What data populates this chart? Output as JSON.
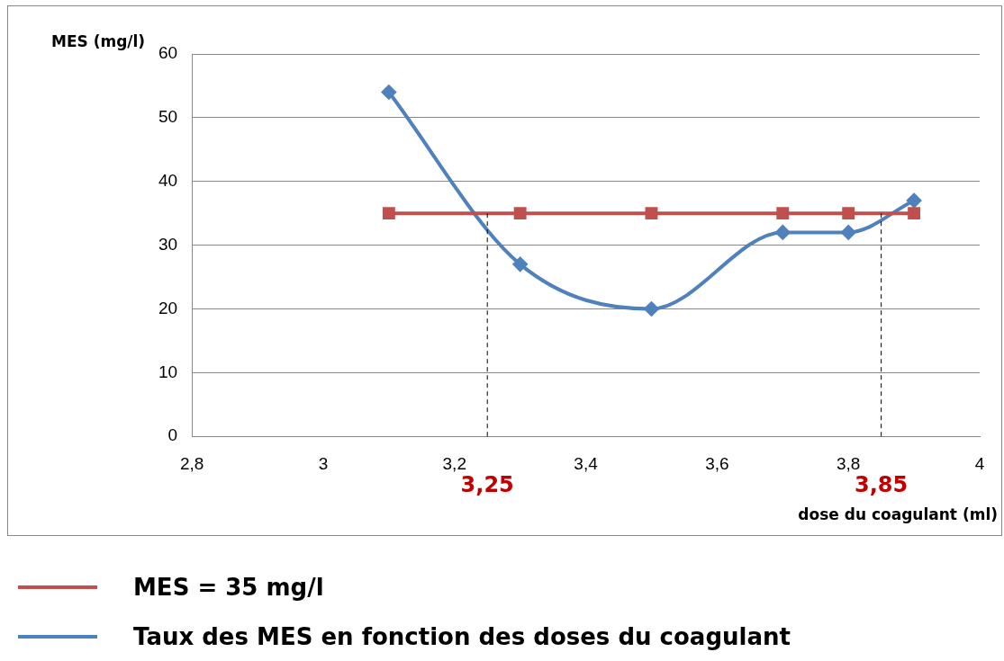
{
  "chart_data": {
    "type": "line",
    "xlabel": "dose du coagulant (ml)",
    "ylabel": "MES (mg/l)",
    "x": [
      3.1,
      3.3,
      3.5,
      3.7,
      3.8,
      3.9
    ],
    "series": [
      {
        "name": "MES = 35 mg/l",
        "color": "#c0504d",
        "marker": "square",
        "values": [
          35,
          35,
          35,
          35,
          35,
          35
        ]
      },
      {
        "name": "Taux des MES en fonction des doses du coagulant",
        "color": "#4f81bd",
        "marker": "diamond",
        "values": [
          54,
          27,
          20,
          32,
          32,
          37
        ]
      }
    ],
    "xlim": [
      2.8,
      4
    ],
    "xticks": [
      {
        "value": 2.8,
        "label": "2,8"
      },
      3,
      {
        "value": 3.2,
        "label": "3,2"
      },
      {
        "value": 3.4,
        "label": "3,4"
      },
      {
        "value": 3.6,
        "label": "3,6"
      },
      {
        "value": 3.8,
        "label": "3,8"
      },
      4
    ],
    "ylim": [
      0,
      60
    ],
    "yticks": [
      0,
      10,
      20,
      30,
      40,
      50,
      60
    ],
    "grid": "y",
    "legend": "bottom",
    "line_style": "solid",
    "ref_lines": [
      {
        "axis": "x",
        "value": 3.25,
        "label": "3,25",
        "color": "#000000",
        "line_style": "dashed"
      },
      {
        "axis": "x",
        "value": 3.85,
        "label": "3,85",
        "color": "#000000",
        "line_style": "dashed"
      }
    ]
  }
}
